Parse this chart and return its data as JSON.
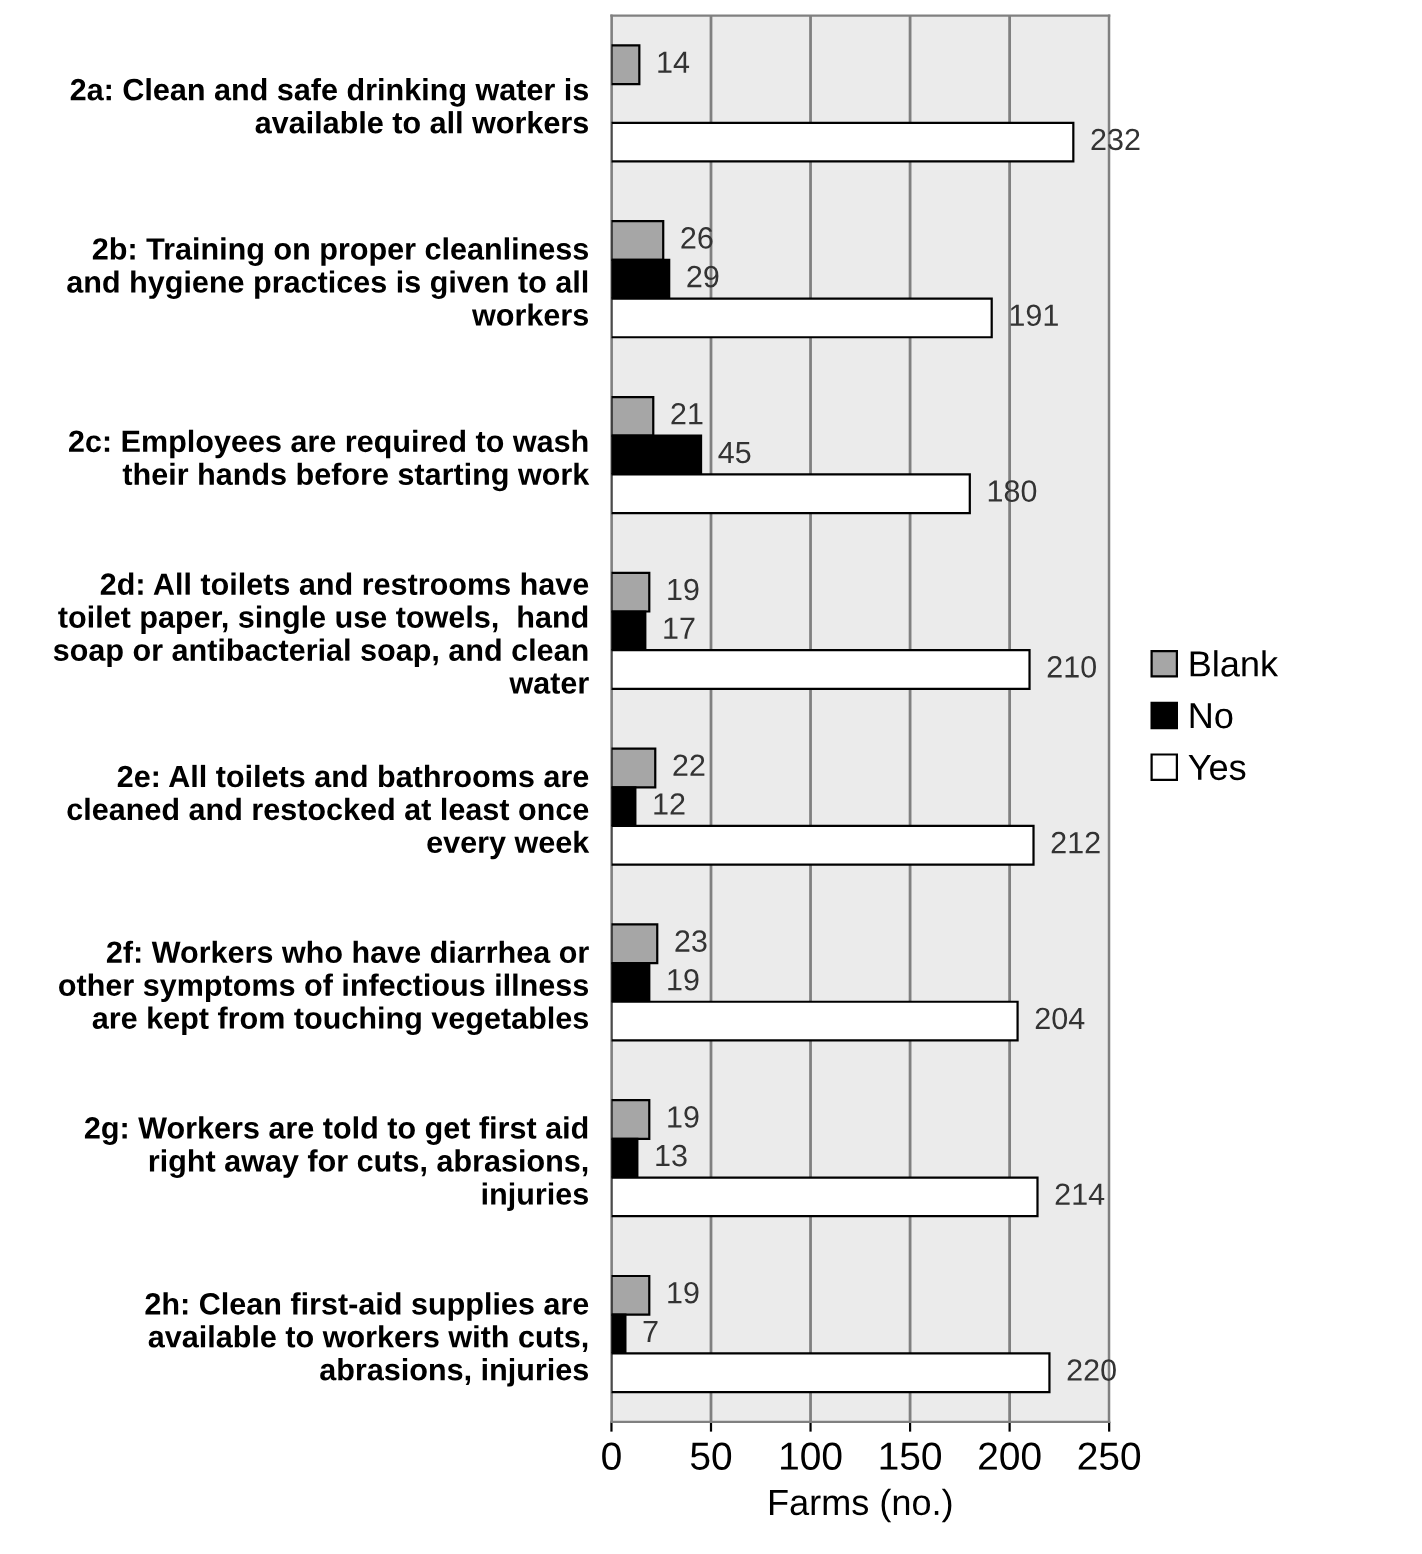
{
  "chart_data": {
    "type": "bar",
    "orientation": "horizontal",
    "xlabel": "Farms (no.)",
    "categories": [
      "2a: Clean and safe drinking water is\navailable to all workers",
      "2b: Training on proper cleanliness\nand hygiene practices is given to all\nworkers",
      "2c: Employees are required to wash\ntheir hands before starting work",
      "2d: All toilets and restrooms have\ntoilet paper, single use towels,  hand\nsoap or antibacterial soap, and clean\nwater",
      "2e: All toilets and bathrooms are\ncleaned and restocked at least once\nevery week",
      "2f: Workers who have diarrhea or\nother symptoms of infectious illness\nare kept from touching vegetables",
      "2g: Workers are told to get first aid\nright away for cuts, abrasions,\ninjuries",
      "2h: Clean first-aid supplies are\navailable to workers with cuts,\nabrasions, injuries"
    ],
    "series": [
      {
        "name": "Blank",
        "color": "#a6a6a6",
        "values": [
          14,
          26,
          21,
          19,
          22,
          23,
          19,
          19
        ]
      },
      {
        "name": "No",
        "color": "#000000",
        "values": [
          null,
          29,
          45,
          17,
          12,
          19,
          13,
          7
        ]
      },
      {
        "name": "Yes",
        "color": "#ffffff",
        "values": [
          232,
          191,
          180,
          210,
          212,
          204,
          214,
          220
        ]
      }
    ],
    "xlim": [
      0,
      250
    ],
    "xticks": [
      0,
      50,
      100,
      150,
      200,
      250
    ],
    "grid": "x",
    "legend": "right",
    "data_labels": true
  }
}
